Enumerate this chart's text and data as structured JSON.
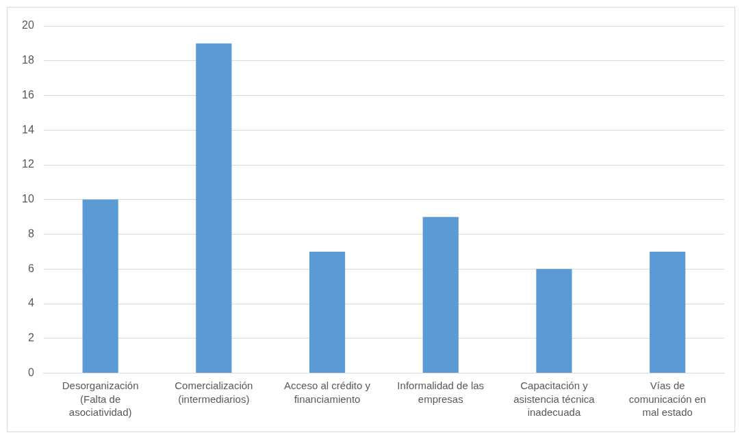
{
  "chart_data": {
    "type": "bar",
    "categories": [
      "Desorganización (Falta de asociatividad)",
      "Comercialización (intermediarios)",
      "Acceso al crédito y financiamiento",
      "Informalidad de las empresas",
      "Capacitación y asistencia técnica inadecuada",
      "Vías de comunicación en mal estado"
    ],
    "values": [
      10,
      19,
      7,
      9,
      6,
      7
    ],
    "color": "#5b9bd5",
    "ylim": [
      0,
      20
    ],
    "yticks": [
      0,
      2,
      4,
      6,
      8,
      10,
      12,
      14,
      16,
      18,
      20
    ],
    "grid": "y"
  }
}
